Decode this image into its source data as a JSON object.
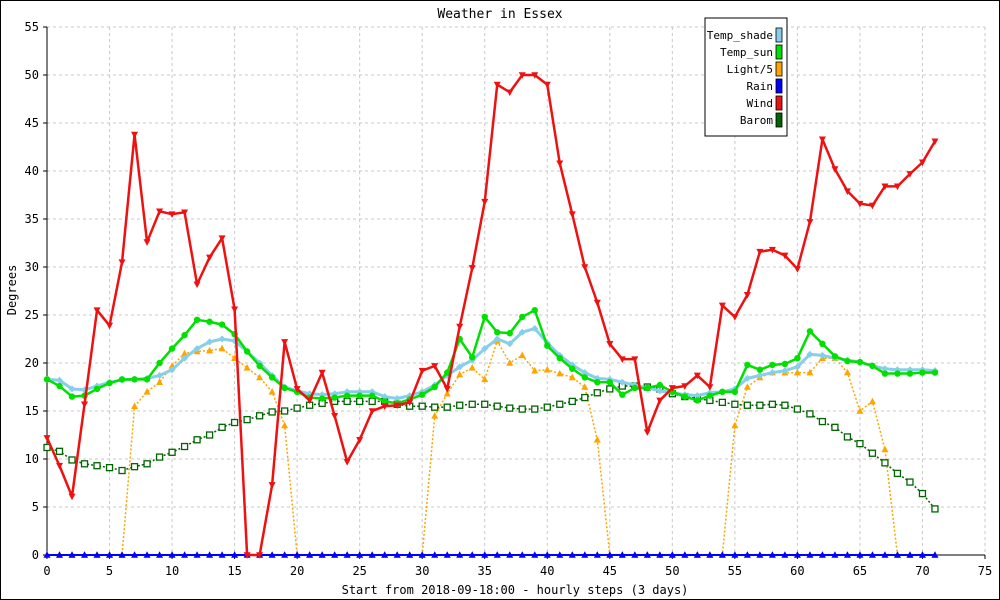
{
  "chart_data": {
    "type": "line",
    "title": "Weather in Essex",
    "xlabel": "Start from 2018-09-18:00 - hourly steps (3 days)",
    "ylabel": "Degrees",
    "xlim": [
      0,
      75
    ],
    "ylim": [
      0,
      55
    ],
    "xticks": [
      0,
      5,
      10,
      15,
      20,
      25,
      30,
      35,
      40,
      45,
      50,
      55,
      60,
      65,
      70,
      75
    ],
    "yticks": [
      0,
      5,
      10,
      15,
      20,
      25,
      30,
      35,
      40,
      45,
      50,
      55
    ],
    "grid": true,
    "legend_position": "top-right",
    "x": [
      0,
      1,
      2,
      3,
      4,
      5,
      6,
      7,
      8,
      9,
      10,
      11,
      12,
      13,
      14,
      15,
      16,
      17,
      18,
      19,
      20,
      21,
      22,
      23,
      24,
      25,
      26,
      27,
      28,
      29,
      30,
      31,
      32,
      33,
      34,
      35,
      36,
      37,
      38,
      39,
      40,
      41,
      42,
      43,
      44,
      45,
      46,
      47,
      48,
      49,
      50,
      51,
      52,
      53,
      54,
      55,
      56,
      57,
      58,
      59,
      60,
      61,
      62,
      63,
      64,
      65,
      66,
      67,
      68,
      69,
      70,
      71
    ],
    "series": [
      {
        "name": "Temp_shade",
        "color": "#87ceeb",
        "marker": "diamond",
        "values": [
          18.3,
          18.2,
          17.3,
          17.2,
          17.6,
          18.0,
          18.2,
          18.3,
          18.4,
          18.7,
          19.3,
          20.5,
          21.5,
          22.2,
          22.5,
          22.3,
          21.2,
          20.0,
          18.7,
          17.5,
          17.1,
          16.8,
          16.7,
          16.8,
          17.0,
          17.0,
          17.0,
          16.5,
          16.3,
          16.6,
          17.0,
          17.7,
          18.7,
          19.6,
          20.3,
          21.5,
          22.5,
          22.0,
          23.2,
          23.6,
          22.1,
          20.8,
          19.8,
          19.0,
          18.4,
          18.3,
          18.0,
          17.7,
          17.4,
          17.1,
          16.9,
          16.7,
          16.6,
          16.9,
          17.0,
          17.3,
          18.4,
          18.7,
          19.0,
          19.2,
          19.6,
          20.9,
          20.8,
          20.5,
          20.3,
          20.1,
          19.7,
          19.4,
          19.3,
          19.3,
          19.3,
          19.2
        ]
      },
      {
        "name": "Temp_sun",
        "color": "#00e000",
        "marker": "circle",
        "values": [
          18.3,
          17.6,
          16.5,
          16.6,
          17.3,
          17.9,
          18.3,
          18.3,
          18.3,
          20.0,
          21.5,
          22.9,
          24.5,
          24.3,
          24.0,
          23.0,
          21.2,
          19.7,
          18.5,
          17.4,
          17.0,
          16.4,
          16.3,
          16.4,
          16.6,
          16.6,
          16.6,
          16.0,
          15.8,
          16.2,
          16.7,
          17.5,
          19.0,
          22.5,
          20.6,
          24.8,
          23.2,
          23.1,
          24.8,
          25.5,
          21.8,
          20.5,
          19.4,
          18.5,
          18.0,
          18.0,
          16.7,
          17.4,
          17.4,
          17.7,
          17.0,
          16.5,
          16.1,
          16.6,
          17.0,
          17.0,
          19.8,
          19.3,
          19.8,
          19.9,
          20.5,
          23.3,
          22.0,
          20.7,
          20.2,
          20.1,
          19.7,
          18.9,
          18.9,
          18.9,
          19.0,
          19.0
        ]
      },
      {
        "name": "Light/5",
        "color": "#ffa500",
        "marker": "triangle",
        "values": [
          0,
          0,
          0,
          0,
          0,
          0,
          0,
          15.5,
          17,
          18,
          19.7,
          21,
          21.2,
          21.3,
          21.5,
          20.5,
          19.5,
          18.5,
          17,
          13.5,
          0,
          0,
          0,
          0,
          0,
          0,
          0,
          0,
          0,
          0,
          0,
          14.5,
          16.8,
          18.8,
          19.5,
          18.3,
          22.3,
          20,
          20.8,
          19.2,
          19.3,
          18.9,
          18.5,
          17.5,
          12,
          0,
          0,
          0,
          0,
          0,
          0,
          0,
          0,
          0,
          0,
          13.5,
          17.5,
          18.5,
          19,
          19,
          19,
          19,
          20.5,
          20.5,
          19,
          15,
          16,
          11,
          0,
          0,
          0,
          0
        ]
      },
      {
        "name": "Rain",
        "color": "#0000ff",
        "marker": "triangle",
        "values": [
          0,
          0,
          0,
          0,
          0,
          0,
          0,
          0,
          0,
          0,
          0,
          0,
          0,
          0,
          0,
          0,
          0,
          0,
          0,
          0,
          0,
          0,
          0,
          0,
          0,
          0,
          0,
          0,
          0,
          0,
          0,
          0,
          0,
          0,
          0,
          0,
          0,
          0,
          0,
          0,
          0,
          0,
          0,
          0,
          0,
          0,
          0,
          0,
          0,
          0,
          0,
          0,
          0,
          0,
          0,
          0,
          0,
          0,
          0,
          0,
          0,
          0,
          0,
          0,
          0,
          0,
          0,
          0,
          0,
          0,
          0,
          0
        ]
      },
      {
        "name": "Wind",
        "color": "#ee1111",
        "marker": "triangle-down",
        "values": [
          12.2,
          9.3,
          6.1,
          15.7,
          25.5,
          23.9,
          30.5,
          43.8,
          32.6,
          35.8,
          35.5,
          35.7,
          28.2,
          31.0,
          33.0,
          25.6,
          0,
          0,
          7.3,
          22.2,
          17.3,
          16.1,
          19.0,
          14.5,
          9.7,
          12.0,
          15.0,
          15.5,
          15.6,
          15.9,
          19.2,
          19.7,
          17.3,
          23.8,
          29.9,
          36.8,
          49.0,
          48.2,
          50.0,
          50.0,
          49.0,
          40.8,
          35.5,
          30.0,
          26.3,
          22.0,
          20.4,
          20.4,
          12.8,
          16.1,
          17.4,
          17.6,
          18.7,
          17.5,
          26.0,
          24.8,
          27.1,
          31.6,
          31.8,
          31.2,
          29.8,
          34.7,
          43.3,
          40.2,
          37.9,
          36.6,
          36.4,
          38.4,
          38.4,
          39.7,
          40.9,
          43.1
        ]
      },
      {
        "name": "Barom",
        "color": "#006400",
        "marker": "square",
        "values": [
          11.2,
          10.8,
          9.9,
          9.5,
          9.3,
          9.1,
          8.8,
          9.2,
          9.5,
          10.2,
          10.7,
          11.3,
          12.0,
          12.5,
          13.3,
          13.8,
          14.1,
          14.5,
          14.9,
          15.0,
          15.3,
          15.6,
          15.8,
          16.0,
          16.0,
          16.0,
          16.0,
          16.0,
          15.7,
          15.5,
          15.5,
          15.4,
          15.4,
          15.6,
          15.7,
          15.7,
          15.5,
          15.3,
          15.2,
          15.2,
          15.4,
          15.7,
          16.0,
          16.4,
          16.9,
          17.3,
          17.6,
          17.6,
          17.5,
          17.3,
          16.8,
          16.5,
          16.3,
          16.1,
          15.9,
          15.7,
          15.6,
          15.6,
          15.7,
          15.6,
          15.2,
          14.7,
          13.9,
          13.3,
          12.3,
          11.6,
          10.6,
          9.6,
          8.5,
          7.6,
          6.4,
          4.8
        ]
      }
    ]
  }
}
